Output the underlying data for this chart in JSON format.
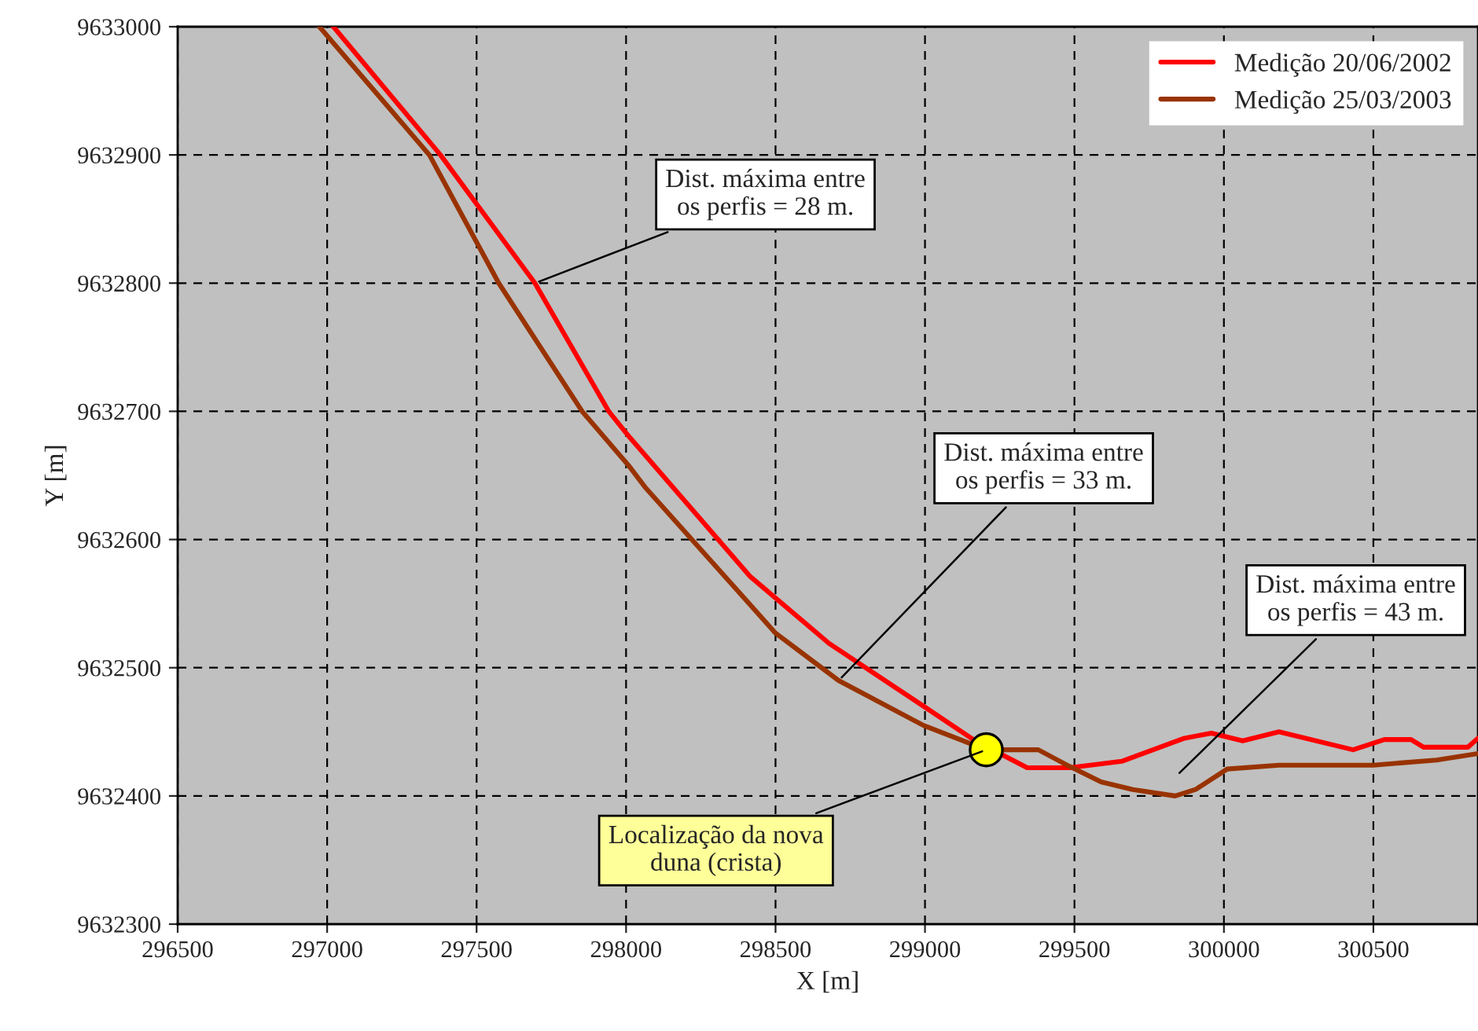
{
  "chart_data": {
    "type": "line",
    "xlabel": "X [m]",
    "ylabel": "Y [m]",
    "xlim": [
      296500,
      300850
    ],
    "ylim": [
      9632300,
      9633000
    ],
    "xticks": [
      296500,
      297000,
      297500,
      298000,
      298500,
      299000,
      299500,
      300000,
      300500
    ],
    "yticks": [
      9632300,
      9632400,
      9632500,
      9632600,
      9632700,
      9632800,
      9632900,
      9633000
    ],
    "grid": true,
    "legend": "top right",
    "line_style": "solid",
    "marker": "none",
    "series": [
      {
        "name": "Medição 20/06/2002",
        "color": "#ff0000",
        "x": [
          297021,
          297379,
          297695,
          297942,
          298011,
          298416,
          298679,
          298995,
          299168,
          299342,
          299484,
          299658,
          299868,
          299958,
          300063,
          300184,
          300432,
          300537,
          300626,
          300668,
          300816,
          300850
        ],
        "values": [
          9633000,
          9632900,
          9632800,
          9632700,
          9632680,
          9632571,
          9632519,
          9632470,
          9632443,
          9632422,
          9632422,
          9632427,
          9632445,
          9632449,
          9632443,
          9632450,
          9632436,
          9632444,
          9632444,
          9632438,
          9632438,
          9632445
        ]
      },
      {
        "name": "Medição 25/03/2003",
        "color": "#993300",
        "x": [
          296974,
          297342,
          297574,
          297853,
          298011,
          298063,
          298500,
          298711,
          298995,
          299205,
          299379,
          299484,
          299589,
          299695,
          299837,
          299905,
          300011,
          300184,
          300500,
          300711,
          300850
        ],
        "values": [
          9633000,
          9632900,
          9632800,
          9632700,
          9632657,
          9632641,
          9632527,
          9632490,
          9632455,
          9632436,
          9632436,
          9632423,
          9632411,
          9632405,
          9632400,
          9632405,
          9632421,
          9632424,
          9632424,
          9632428,
          9632433
        ]
      },
      {
        "type": "scatter",
        "color": "#ffff00",
        "marker": "circle",
        "x": [
          299205
        ],
        "values": [
          9632436
        ]
      }
    ],
    "annotations": [
      {
        "text": "Dist. máxima entre\nos perfis = 28 m.",
        "x": 297695,
        "y": 9632800
      },
      {
        "text": "Dist. máxima entre\nos perfis = 33 m.",
        "x": 298711,
        "y": 9632490
      },
      "Dist. máxima entre\nos perfis = 43 m.",
      {
        "text": "Localização da nova\nduna (crista)",
        "x": 299205,
        "y": 9632436
      }
    ]
  }
}
